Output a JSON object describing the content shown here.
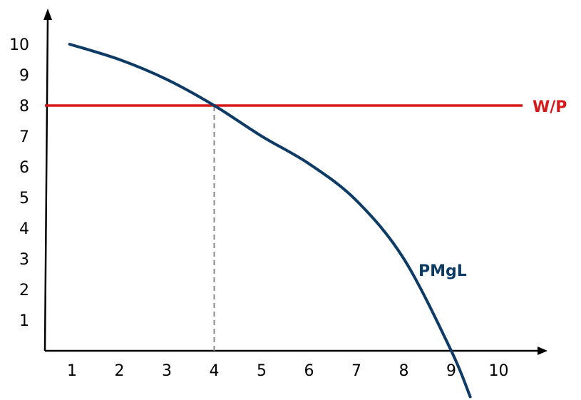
{
  "chart_data": {
    "type": "line",
    "title": "",
    "xlabel": "",
    "ylabel": "",
    "xlim": [
      0.5,
      11
    ],
    "ylim": [
      -1.6,
      10.6
    ],
    "grid": false,
    "legend": "none",
    "x_ticks": [
      1,
      2,
      3,
      4,
      5,
      6,
      7,
      8,
      9,
      10
    ],
    "y_ticks": [
      1,
      2,
      3,
      4,
      5,
      6,
      7,
      8,
      9,
      10
    ],
    "series": [
      {
        "name": "PMgL",
        "color": "#0d3b66",
        "x": [
          0.95,
          2,
          3,
          4,
          5,
          6,
          7,
          8,
          9,
          9.4
        ],
        "y": [
          10,
          9.5,
          8.85,
          8.0,
          7.0,
          6.1,
          4.9,
          3.0,
          0,
          -1.5
        ]
      },
      {
        "name": "W/P",
        "color": "#d7191c",
        "x": [
          0.5,
          10.5
        ],
        "y": [
          8,
          8
        ]
      }
    ],
    "annotations": [
      {
        "type": "vline",
        "x": 4,
        "y_from": 0,
        "y_to": 8,
        "style": "dashed",
        "color": "#888888"
      }
    ]
  }
}
